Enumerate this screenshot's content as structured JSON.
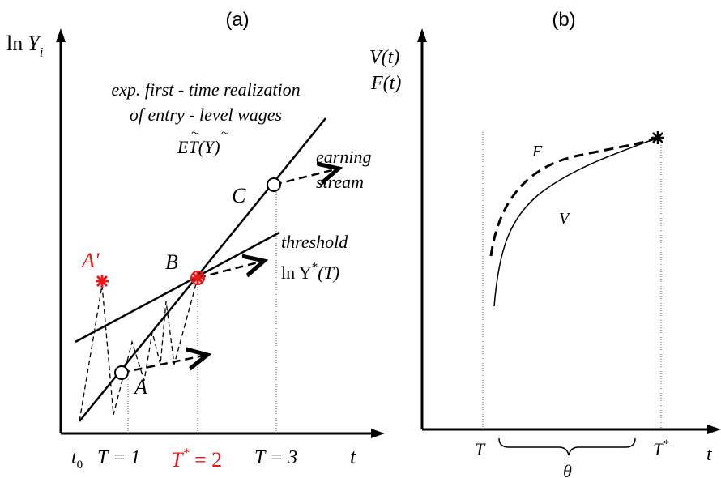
{
  "panel_a": {
    "panel_label": "(a)",
    "y_axis": {
      "base": "ln",
      "var": "Y",
      "sub": "i"
    },
    "x_axis": "t",
    "entry_line_label": {
      "line1": "exp. first - time realization",
      "line2": "of entry - level wages",
      "math_base": "E",
      "math_T": "T",
      "math_rest": "(",
      "math_Y": "Y",
      "math_close": ")"
    },
    "earning_label": {
      "line1": "earning",
      "line2": "stream"
    },
    "threshold_label": {
      "line1": "threshold",
      "math_pre": "ln Y",
      "sup": "*",
      "math_post": "(T)"
    },
    "points": {
      "A": "A",
      "A_prime": "A'",
      "B": "B",
      "C": "C"
    },
    "ticks": {
      "t0_base": "t",
      "t0_sub": "0",
      "T1": "T = 1",
      "T2_base": "T",
      "T2_sup": "*",
      "T2_rest": " = 2",
      "T3": "T = 3"
    },
    "highlight_color": "#e8191b"
  },
  "panel_b": {
    "panel_label": "(b)",
    "y_label_1": "V(t)",
    "y_label_2": "F(t)",
    "x_axis": "t",
    "curve_F": "F",
    "curve_V": "V",
    "tick_T": "T",
    "tick_Tstar_base": "T",
    "tick_Tstar_sup": "*",
    "interval": "θ"
  }
}
